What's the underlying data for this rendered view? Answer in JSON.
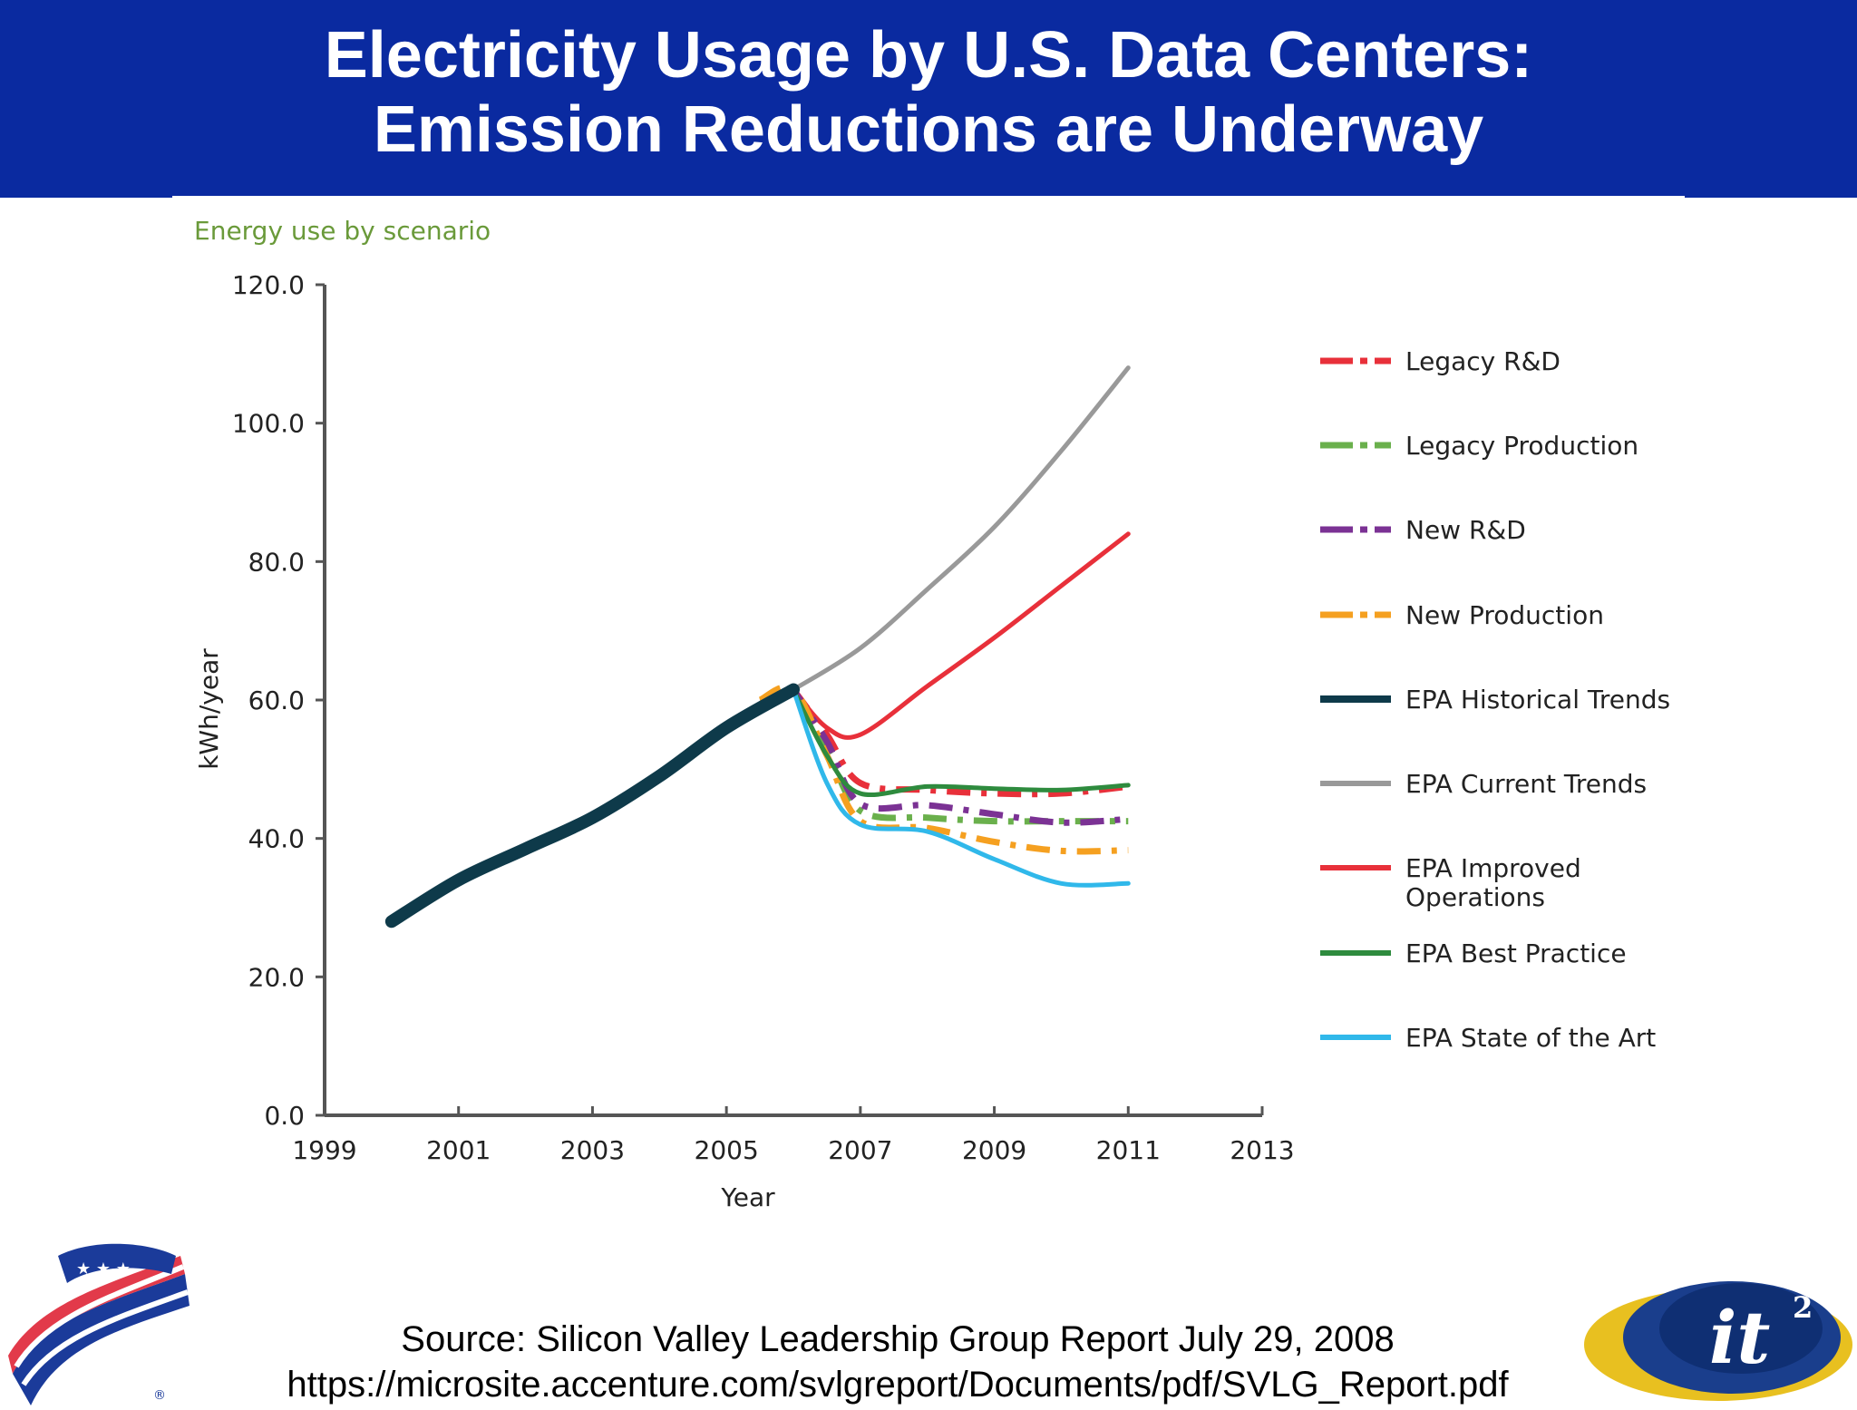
{
  "header": {
    "title_line1": "Electricity Usage by U.S. Data Centers:",
    "title_line2": "Emission Reductions are Underway"
  },
  "chart_data": {
    "type": "line",
    "title": "Energy use by scenario",
    "xlabel": "Year",
    "ylabel": "kWh/year",
    "xlim": [
      1999,
      2013
    ],
    "ylim": [
      0,
      120
    ],
    "xticks": [
      1999,
      2001,
      2003,
      2005,
      2007,
      2009,
      2011,
      2013
    ],
    "yticks": [
      0,
      20,
      40,
      60,
      80,
      100,
      120
    ],
    "ytick_labels": [
      "0.0",
      "20.0",
      "40.0",
      "60.0",
      "80.0",
      "100.0",
      "120.0"
    ],
    "grid": false,
    "legend_position": "right",
    "series": [
      {
        "name": "Legacy R&D",
        "color": "#e8303a",
        "style": "dashdot",
        "x": [
          2006,
          2006.5,
          2007,
          2008,
          2009,
          2010,
          2011
        ],
        "y": [
          61.5,
          55,
          48,
          47,
          46.5,
          46.5,
          47.5
        ]
      },
      {
        "name": "Legacy Production",
        "color": "#6ab04c",
        "style": "dashdot",
        "x": [
          2006,
          2006.5,
          2007,
          2008,
          2009,
          2010,
          2011
        ],
        "y": [
          61.5,
          53,
          44,
          43,
          42.5,
          42.5,
          42.5
        ]
      },
      {
        "name": "New R&D",
        "color": "#7b3294",
        "style": "dashdot",
        "x": [
          2006,
          2006.5,
          2007,
          2008,
          2009,
          2010,
          2011
        ],
        "y": [
          61.5,
          54,
          45,
          44.8,
          43.5,
          42.3,
          42.8
        ]
      },
      {
        "name": "New Production",
        "color": "#f5a020",
        "style": "dashdot",
        "x": [
          2005.5,
          2006,
          2006.5,
          2007,
          2008,
          2009,
          2010,
          2011
        ],
        "y": [
          60,
          61.5,
          52,
          42.5,
          41.5,
          39.5,
          38.2,
          38.3
        ]
      },
      {
        "name": "EPA Historical Trends",
        "color": "#0e3a4a",
        "style": "solid",
        "x": [
          2000,
          2001,
          2002,
          2003,
          2004,
          2005,
          2006
        ],
        "y": [
          28,
          34,
          38.5,
          43,
          49,
          56,
          61.5
        ]
      },
      {
        "name": "EPA Current Trends",
        "color": "#999999",
        "style": "solid",
        "x": [
          2006,
          2007,
          2008,
          2009,
          2010,
          2011
        ],
        "y": [
          61.5,
          67.5,
          76,
          85,
          96,
          108
        ]
      },
      {
        "name": "EPA Improved Operations",
        "color": "#e8303a",
        "style": "solid",
        "x": [
          2006,
          2006.5,
          2007,
          2008,
          2009,
          2010,
          2011
        ],
        "y": [
          61.5,
          56,
          55,
          62,
          69,
          76.5,
          84
        ]
      },
      {
        "name": "EPA Best Practice",
        "color": "#2e8b3e",
        "style": "solid",
        "x": [
          2006,
          2006.5,
          2007,
          2008,
          2009,
          2010,
          2011
        ],
        "y": [
          61.5,
          52,
          46.5,
          47.5,
          47.2,
          47,
          47.7
        ]
      },
      {
        "name": "EPA State of the Art",
        "color": "#30b8ea",
        "style": "solid",
        "x": [
          2006,
          2006.5,
          2007,
          2008,
          2009,
          2010,
          2011
        ],
        "y": [
          61.5,
          48,
          42,
          41,
          37,
          33.5,
          33.5
        ]
      }
    ],
    "legend_labels": [
      [
        "Legacy R&D"
      ],
      [
        "Legacy Production"
      ],
      [
        "New R&D"
      ],
      [
        "New Production"
      ],
      [
        "EPA Historical Trends"
      ],
      [
        "EPA Current Trends"
      ],
      [
        "EPA Improved",
        "Operations"
      ],
      [
        "EPA Best Practice"
      ],
      [
        "EPA State of the Art"
      ]
    ]
  },
  "footer": {
    "source_line1": "Source: Silicon Valley Leadership Group Report July 29, 2008",
    "source_line2": "https://microsite.accenture.com/svlgreport/Documents/pdf/SVLG_Report.pdf"
  },
  "logos": {
    "right_logo_text": "it",
    "right_logo_sup": "2",
    "left_logo_mark": "®"
  }
}
